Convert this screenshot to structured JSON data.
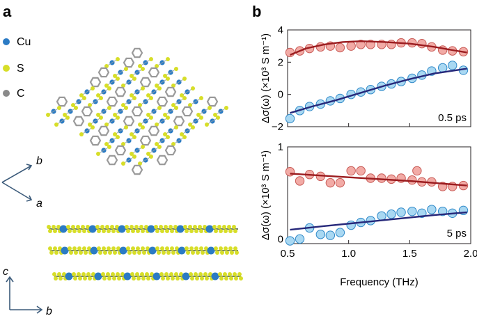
{
  "panels": {
    "a": "a",
    "b": "b"
  },
  "legend": [
    {
      "symbol": "Cu",
      "color": "#2b7bc4"
    },
    {
      "symbol": "S",
      "color": "#d7de28"
    },
    {
      "symbol": "C",
      "color": "#8a8a8a"
    }
  ],
  "axes_a": {
    "top_b": "b",
    "top_a": "a",
    "bottom_c": "c",
    "bottom_b": "b"
  },
  "colors": {
    "red_fill": "#f2aba6",
    "red_stroke": "#c85a55",
    "red_line": "#9b1c1f",
    "blue_fill": "#a9d8f2",
    "blue_stroke": "#2e88c8",
    "blue_line": "#26287a"
  },
  "chart_data": [
    {
      "type": "scatter",
      "annotation": "0.5 ps",
      "ylabel": "Δσ(ω) (×10³ S m⁻¹)",
      "xlabel": "",
      "xlim": [
        0.5,
        2.0
      ],
      "ylim": [
        -2,
        4
      ],
      "yticks": [
        "−2",
        "0",
        "2",
        "4"
      ],
      "yticks_values": [
        -2,
        0,
        2,
        4
      ],
      "series": [
        {
          "x": [
            0.52,
            0.6,
            0.68,
            0.77,
            0.85,
            0.93,
            1.02,
            1.1,
            1.18,
            1.27,
            1.35,
            1.43,
            1.52,
            1.6,
            1.68,
            1.77,
            1.85,
            1.94
          ],
          "y": [
            2.6,
            2.7,
            2.85,
            2.95,
            3.0,
            2.9,
            3.0,
            3.1,
            3.1,
            3.1,
            3.1,
            3.2,
            3.2,
            3.15,
            2.95,
            2.75,
            2.7,
            2.65
          ],
          "fit": [
            [
              0.52,
              2.45
            ],
            [
              0.65,
              2.85
            ],
            [
              0.8,
              3.1
            ],
            [
              0.95,
              3.25
            ],
            [
              1.1,
              3.3
            ],
            [
              1.3,
              3.25
            ],
            [
              1.5,
              3.15
            ],
            [
              1.7,
              2.95
            ],
            [
              1.85,
              2.75
            ],
            [
              1.97,
              2.6
            ]
          ]
        },
        {
          "x": [
            0.52,
            0.6,
            0.68,
            0.77,
            0.85,
            0.93,
            1.02,
            1.1,
            1.18,
            1.27,
            1.35,
            1.43,
            1.52,
            1.6,
            1.68,
            1.77,
            1.85,
            1.94
          ],
          "y": [
            -1.5,
            -1.0,
            -0.75,
            -0.6,
            -0.4,
            -0.25,
            0.0,
            0.15,
            0.3,
            0.5,
            0.65,
            0.8,
            1.0,
            1.2,
            1.45,
            1.65,
            1.8,
            1.5
          ],
          "fit": [
            [
              0.52,
              -1.15
            ],
            [
              0.7,
              -0.75
            ],
            [
              0.9,
              -0.35
            ],
            [
              1.1,
              0.1
            ],
            [
              1.3,
              0.55
            ],
            [
              1.5,
              0.95
            ],
            [
              1.7,
              1.3
            ],
            [
              1.97,
              1.6
            ]
          ]
        }
      ]
    },
    {
      "type": "scatter",
      "annotation": "5 ps",
      "ylabel": "Δσ(ω) (×10³ S m⁻¹)",
      "xlabel": "Frequency (THz)",
      "xlim": [
        0.5,
        2.0
      ],
      "ylim": [
        -0.05,
        1.0
      ],
      "xticks": [
        "0.5",
        "1.0",
        "1.5",
        "2.0"
      ],
      "xticks_values": [
        0.5,
        1.0,
        1.5,
        2.0
      ],
      "yticks": [
        "0",
        "1"
      ],
      "yticks_values": [
        0,
        1
      ],
      "series": [
        {
          "x": [
            0.52,
            0.6,
            0.68,
            0.77,
            0.85,
            0.93,
            1.02,
            1.1,
            1.18,
            1.27,
            1.35,
            1.43,
            1.52,
            1.56,
            1.6,
            1.68,
            1.77,
            1.85,
            1.94
          ],
          "y": [
            0.73,
            0.63,
            0.7,
            0.68,
            0.61,
            0.61,
            0.74,
            0.74,
            0.66,
            0.66,
            0.65,
            0.66,
            0.64,
            0.74,
            0.62,
            0.62,
            0.57,
            0.57,
            0.58
          ],
          "fit": [
            [
              0.52,
              0.71
            ],
            [
              1.0,
              0.67
            ],
            [
              1.5,
              0.63
            ],
            [
              1.97,
              0.58
            ]
          ]
        },
        {
          "x": [
            0.52,
            0.6,
            0.68,
            0.77,
            0.85,
            0.93,
            1.02,
            1.1,
            1.18,
            1.27,
            1.35,
            1.43,
            1.52,
            1.6,
            1.68,
            1.77,
            1.85,
            1.94
          ],
          "y": [
            -0.02,
            0.0,
            0.12,
            0.05,
            0.04,
            0.07,
            0.15,
            0.18,
            0.2,
            0.25,
            0.27,
            0.29,
            0.3,
            0.28,
            0.32,
            0.3,
            0.28,
            0.31
          ],
          "fit": [
            [
              0.52,
              0.1
            ],
            [
              0.8,
              0.14
            ],
            [
              1.1,
              0.18
            ],
            [
              1.4,
              0.22
            ],
            [
              1.7,
              0.26
            ],
            [
              1.97,
              0.29
            ]
          ]
        }
      ]
    }
  ]
}
